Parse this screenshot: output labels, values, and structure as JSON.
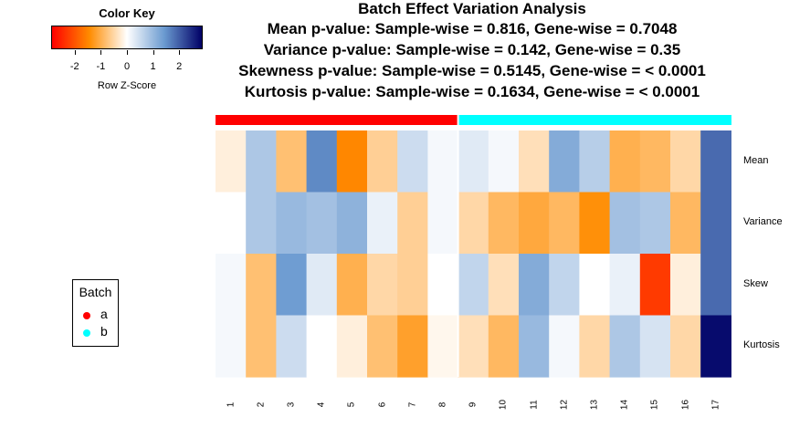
{
  "title_lines": [
    "Batch Effect Variation Analysis",
    "Mean p-value: Sample-wise = 0.816, Gene-wise = 0.7048",
    "Variance p-value: Sample-wise = 0.142, Gene-wise = 0.35",
    "Skewness p-value: Sample-wise = 0.5145, Gene-wise = < 0.0001",
    "Kurtosis p-value: Sample-wise = 0.1634, Gene-wise = < 0.0001"
  ],
  "color_key": {
    "title": "Color Key",
    "xlabel": "Row Z-Score",
    "ticks": [
      "-2",
      "-1",
      "0",
      "1",
      "2"
    ],
    "range": [
      -2.9,
      2.9
    ],
    "gradient": [
      "#ff0000",
      "#ff8c00",
      "#ffffff",
      "#6a9ad0",
      "#000066"
    ]
  },
  "legend": {
    "title": "Batch",
    "items": [
      {
        "label": "a",
        "color": "#ff0000"
      },
      {
        "label": "b",
        "color": "#00ffff"
      }
    ]
  },
  "chart_data": {
    "type": "heatmap",
    "columns": [
      "1",
      "2",
      "3",
      "4",
      "5",
      "6",
      "7",
      "8",
      "9",
      "10",
      "11",
      "12",
      "13",
      "14",
      "15",
      "16",
      "17"
    ],
    "rows": [
      "Mean",
      "Variance",
      "Skew",
      "Kurtosis"
    ],
    "batch": [
      "a",
      "a",
      "a",
      "a",
      "a",
      "a",
      "a",
      "a",
      "b",
      "b",
      "b",
      "b",
      "b",
      "b",
      "b",
      "b",
      "b"
    ],
    "batch_colors": {
      "a": "#ff0000",
      "b": "#00ffff"
    },
    "values": [
      [
        -0.2,
        0.8,
        -0.8,
        1.6,
        -1.5,
        -0.6,
        0.5,
        0.1,
        0.3,
        0.1,
        -0.4,
        1.2,
        0.7,
        -1.0,
        -0.9,
        -0.5,
        1.9
      ],
      [
        0.0,
        0.8,
        1.0,
        0.9,
        1.1,
        0.2,
        -0.6,
        0.1,
        -0.5,
        -0.9,
        -1.1,
        -0.9,
        -1.4,
        0.9,
        0.8,
        -0.9,
        1.9
      ],
      [
        0.1,
        -0.8,
        1.4,
        0.3,
        -1.0,
        -0.5,
        -0.6,
        0.0,
        0.6,
        -0.4,
        1.2,
        0.6,
        0.0,
        0.2,
        -2.3,
        -0.2,
        1.9
      ],
      [
        0.1,
        -0.8,
        0.5,
        0.0,
        -0.2,
        -0.8,
        -1.2,
        -0.1,
        -0.4,
        -0.9,
        1.0,
        0.1,
        -0.5,
        0.8,
        0.4,
        -0.5,
        2.8
      ]
    ],
    "zlim": [
      -2.9,
      2.9
    ]
  }
}
